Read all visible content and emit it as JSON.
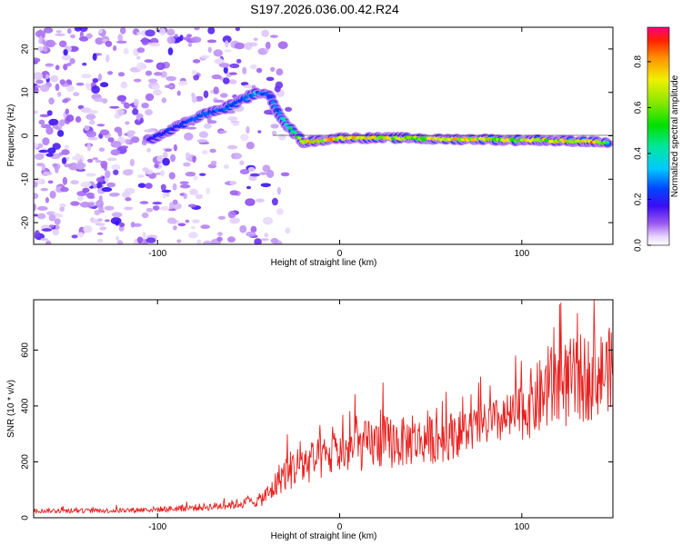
{
  "figure_title": "S197.2026.036.00.42.R24",
  "chart_data": [
    {
      "type": "heatmap",
      "title": "S197.2026.036.00.42.R24",
      "xlabel": "Height of straight line (km)",
      "ylabel": "Frequency (Hz)",
      "xlim": [
        -168,
        150
      ],
      "ylim": [
        -25,
        25
      ],
      "xticks": [
        -100,
        0,
        100
      ],
      "xtick_labels": [
        "-100",
        "0",
        "100"
      ],
      "yticks": [
        -20,
        -10,
        0,
        10,
        20
      ],
      "ytick_labels": [
        "-20",
        "-10",
        "0",
        "10",
        "20"
      ],
      "colorbar": {
        "label": "Normalized spectral amplitude",
        "range": [
          0,
          0.95
        ],
        "ticks": [
          0.0,
          0.2,
          0.4,
          0.6,
          0.8
        ],
        "tick_labels": [
          "0.0",
          "0.2",
          "0.4",
          "0.6",
          "0.8"
        ]
      },
      "ridge_trace": {
        "description_free": true,
        "height_km": [
          -105,
          -95,
          -85,
          -75,
          -65,
          -55,
          -45,
          -38,
          -33,
          -28,
          -20,
          -10,
          0,
          10,
          20,
          30,
          40,
          50,
          60,
          70,
          80,
          90,
          100,
          110,
          120,
          130,
          140,
          148
        ],
        "frequency_hz": [
          -1,
          1,
          3,
          5,
          6,
          8,
          10,
          9,
          5,
          2,
          -1.5,
          -1,
          -0.5,
          -0.5,
          -0.5,
          -0.5,
          -0.5,
          -0.8,
          -0.8,
          -0.8,
          -0.8,
          -1,
          -1,
          -1,
          -1.2,
          -1.2,
          -1.4,
          -1.6
        ],
        "amplitude": [
          0.2,
          0.25,
          0.25,
          0.3,
          0.3,
          0.3,
          0.35,
          0.3,
          0.35,
          0.5,
          0.8,
          0.85,
          0.9,
          0.85,
          0.8,
          0.75,
          0.7,
          0.8,
          0.85,
          0.85,
          0.8,
          0.75,
          0.8,
          0.75,
          0.8,
          0.85,
          0.9,
          0.6
        ]
      }
    },
    {
      "type": "line",
      "xlabel": "Height of straight line (km)",
      "ylabel": "SNR (10 * v/v)",
      "xlim": [
        -168,
        150
      ],
      "ylim": [
        0,
        780
      ],
      "xticks": [
        -100,
        0,
        100
      ],
      "xtick_labels": [
        "-100",
        "0",
        "100"
      ],
      "yticks": [
        0,
        200,
        400,
        600
      ],
      "ytick_labels": [
        "0",
        "200",
        "400",
        "600"
      ],
      "color": "#e8201e",
      "series": [
        {
          "name": "SNR",
          "x": [
            -168,
            -150,
            -130,
            -110,
            -90,
            -70,
            -55,
            -45,
            -38,
            -32,
            -25,
            -15,
            -5,
            5,
            15,
            25,
            35,
            45,
            55,
            65,
            75,
            85,
            95,
            100,
            105,
            110,
            115,
            120,
            125,
            130,
            135,
            140,
            145,
            150
          ],
          "baseline": [
            25,
            25,
            25,
            28,
            32,
            40,
            50,
            60,
            90,
            150,
            180,
            200,
            220,
            240,
            260,
            270,
            270,
            275,
            285,
            300,
            320,
            340,
            360,
            380,
            410,
            430,
            460,
            470,
            480,
            490,
            500,
            510,
            520,
            540
          ],
          "spread": [
            12,
            12,
            12,
            14,
            16,
            20,
            25,
            30,
            60,
            90,
            110,
            110,
            110,
            120,
            130,
            140,
            130,
            120,
            130,
            120,
            110,
            120,
            130,
            150,
            180,
            200,
            220,
            230,
            230,
            230,
            230,
            220,
            220,
            210
          ]
        }
      ]
    }
  ]
}
